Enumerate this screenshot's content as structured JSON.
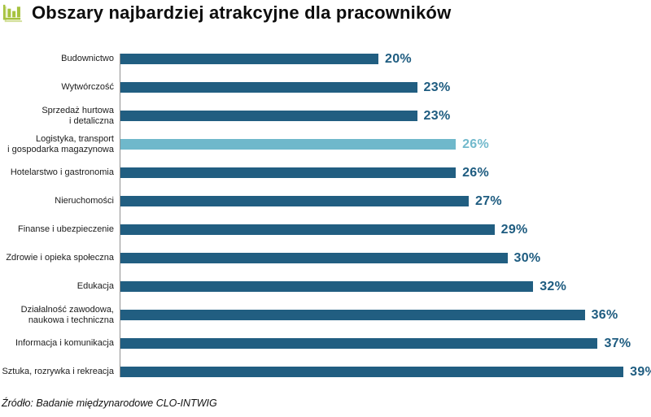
{
  "header": {
    "title": "Obszary najbardziej atrakcyjne dla pracowników",
    "icon": "bar-chart-icon"
  },
  "chart_data": {
    "type": "bar",
    "orientation": "horizontal",
    "title": "Obszary najbardziej atrakcyjne dla pracowników",
    "unit": "%",
    "xlim": [
      0,
      40
    ],
    "grid": false,
    "legend": false,
    "categories": [
      "Budownictwo",
      "Wytwórczość",
      "Sprzedaż hurtowa\ni detaliczna",
      "Logistyka, transport\ni gospodarka magazynowa",
      "Hotelarstwo i gastronomia",
      "Nieruchomości",
      "Finanse i ubezpieczenie",
      "Zdrowie i opieka społeczna",
      "Edukacja",
      "Działalność zawodowa,\nnaukowa i techniczna",
      "Informacja i komunikacja",
      "Sztuka, rozrywka i rekreacja"
    ],
    "values": [
      20,
      23,
      23,
      26,
      26,
      27,
      29,
      30,
      32,
      36,
      37,
      39
    ],
    "highlight_index": 3,
    "colors": {
      "bar": "#215E81",
      "bar_highlight": "#6FB8CB",
      "value_text": "#1E5C80",
      "value_text_highlight": "#72B9CC",
      "axis_line": "#919191",
      "icon_green": "#A6C23E"
    }
  },
  "footer": {
    "source": "Źródło: Badanie międzynarodowe CLO-INTWIG"
  }
}
